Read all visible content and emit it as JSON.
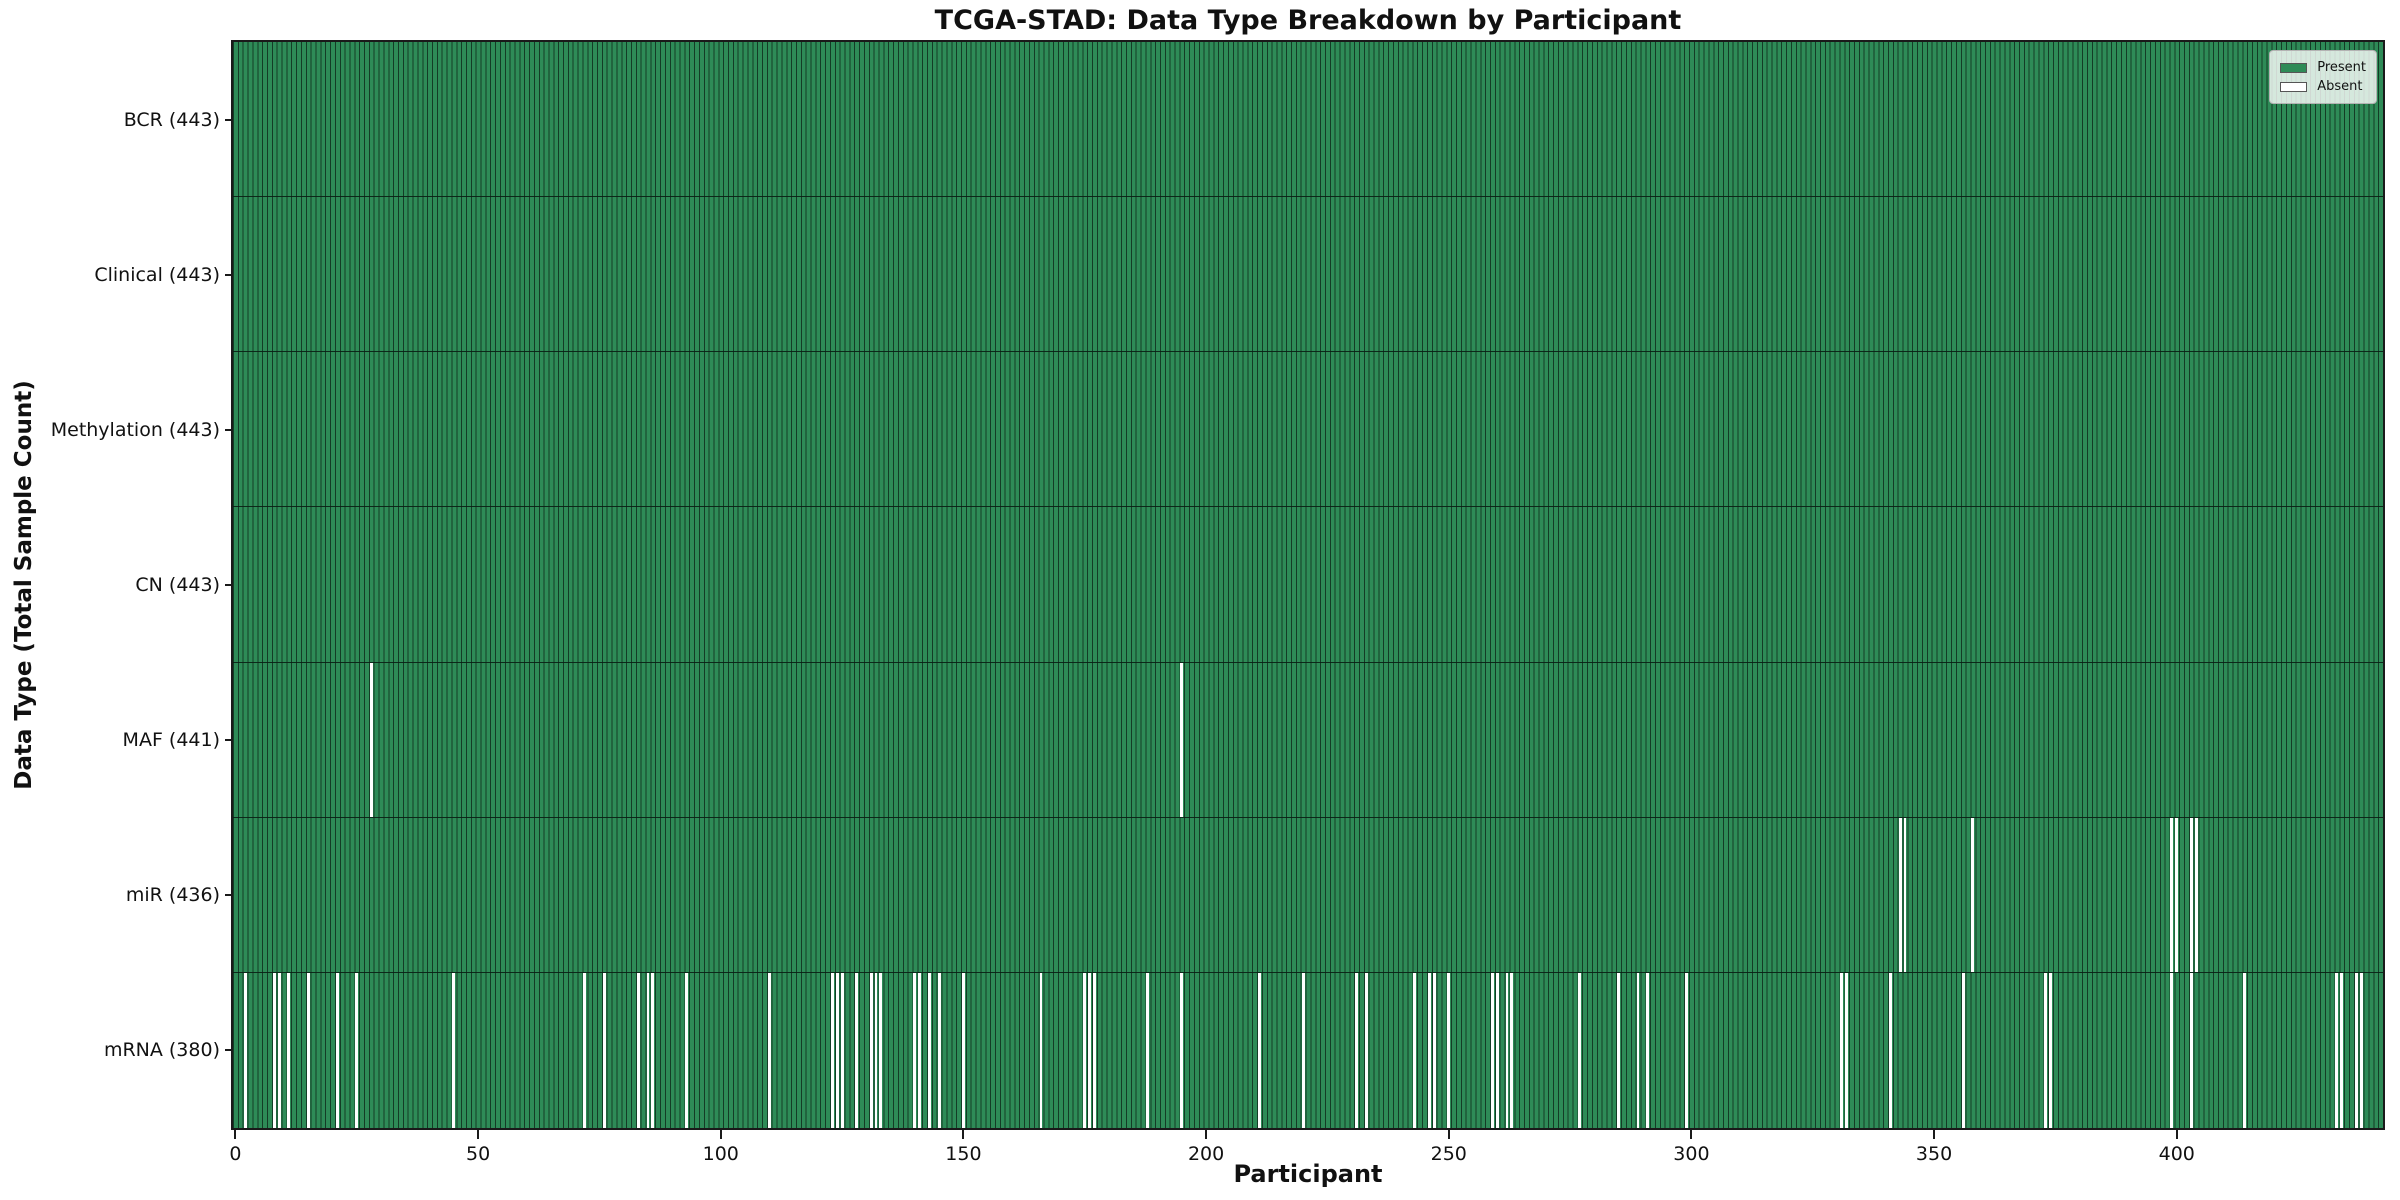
{
  "chart_data": {
    "type": "heatmap",
    "title": "TCGA-STAD: Data Type Breakdown by Participant",
    "xlabel": "Participant",
    "ylabel": "Data Type (Total Sample Count)",
    "n_participants": 443,
    "x_ticks": [
      0,
      50,
      100,
      150,
      200,
      250,
      300,
      350,
      400
    ],
    "present_color": "#2e8b57",
    "absent_color": "#ffffff",
    "legend": [
      {
        "label": "Present",
        "color": "#2e8b57"
      },
      {
        "label": "Absent",
        "color": "#ffffff"
      }
    ],
    "legend_position": "upper right",
    "rows": [
      {
        "label": "BCR (443)",
        "name": "BCR",
        "total": 443,
        "absent": []
      },
      {
        "label": "Clinical (443)",
        "name": "Clinical",
        "total": 443,
        "absent": []
      },
      {
        "label": "Methylation (443)",
        "name": "Methylation",
        "total": 443,
        "absent": []
      },
      {
        "label": "CN (443)",
        "name": "CN",
        "total": 443,
        "absent": []
      },
      {
        "label": "MAF (441)",
        "name": "MAF",
        "total": 441,
        "absent": [
          28,
          195
        ]
      },
      {
        "label": "miR (436)",
        "name": "miR",
        "total": 436,
        "absent": [
          343,
          344,
          358,
          399,
          400,
          403,
          404
        ]
      },
      {
        "label": "mRNA (380)",
        "name": "mRNA",
        "total": 380,
        "absent": [
          2,
          8,
          9,
          11,
          15,
          21,
          25,
          45,
          72,
          76,
          83,
          85,
          86,
          93,
          110,
          123,
          124,
          125,
          128,
          131,
          132,
          133,
          140,
          141,
          143,
          145,
          150,
          166,
          175,
          176,
          177,
          188,
          195,
          211,
          220,
          231,
          233,
          243,
          246,
          247,
          250,
          259,
          260,
          262,
          263,
          277,
          285,
          289,
          291,
          299,
          331,
          332,
          341,
          356,
          373,
          374,
          399,
          403,
          414,
          433,
          434,
          437,
          438
        ]
      }
    ]
  }
}
